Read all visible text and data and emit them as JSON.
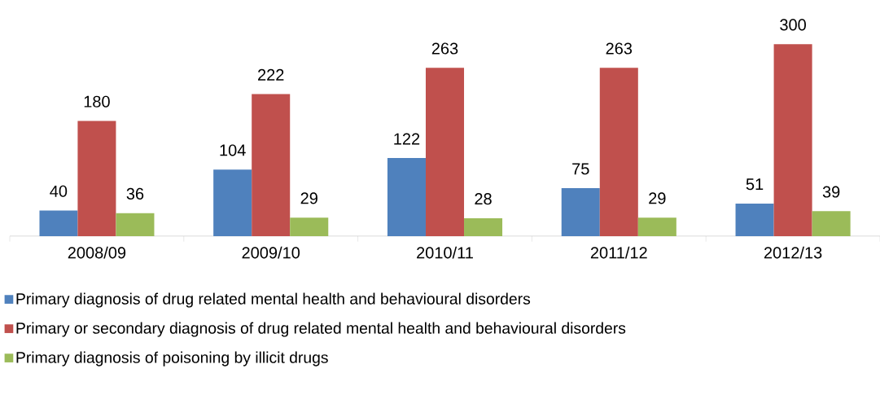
{
  "chart_data": {
    "type": "bar",
    "categories": [
      "2008/09",
      "2009/10",
      "2010/11",
      "2011/12",
      "2012/13"
    ],
    "series": [
      {
        "name": "Primary diagnosis of drug related mental health and behavioural disorders",
        "color": "#4f81bd",
        "values": [
          40,
          104,
          122,
          75,
          51
        ]
      },
      {
        "name": "Primary or secondary diagnosis of drug related mental health and behavioural disorders",
        "color": "#c0504d",
        "values": [
          180,
          222,
          263,
          263,
          300
        ]
      },
      {
        "name": "Primary diagnosis of poisoning by illicit drugs",
        "color": "#9bbb59",
        "values": [
          36,
          29,
          28,
          29,
          39
        ]
      }
    ],
    "data_labels": true,
    "legend": "bottom"
  }
}
